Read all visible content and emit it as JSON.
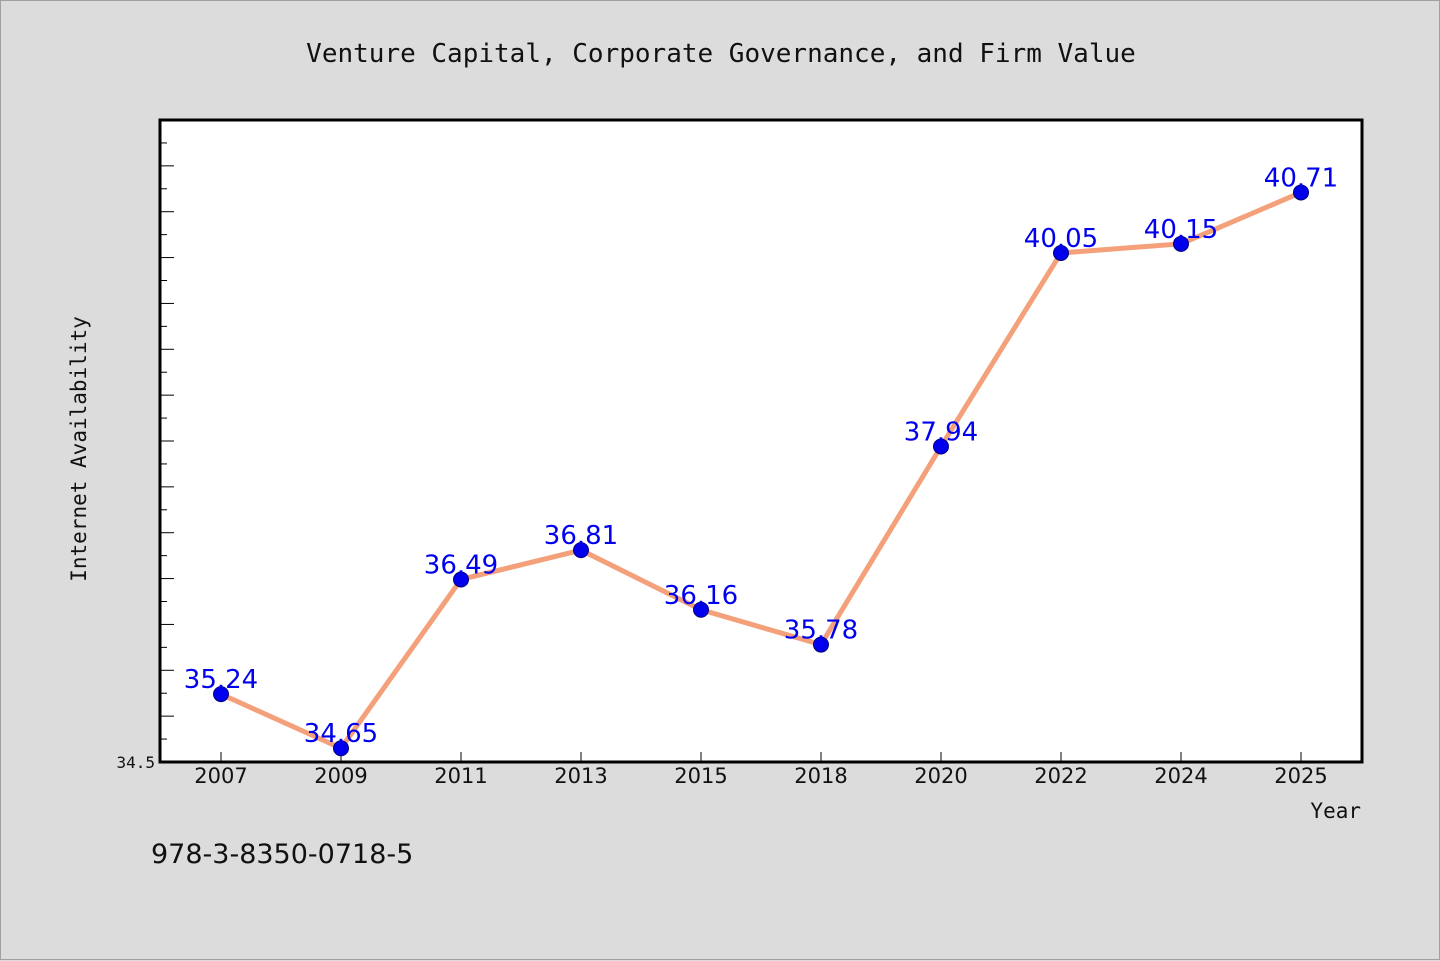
{
  "chart_data": {
    "type": "line",
    "title": "Venture Capital, Corporate Governance, and Firm Value",
    "xlabel": "Year",
    "ylabel": "Internet Availability",
    "categories": [
      "2007",
      "2009",
      "2011",
      "2013",
      "2015",
      "2018",
      "2020",
      "2022",
      "2024",
      "2025"
    ],
    "series": [
      {
        "values": [
          35.24,
          34.65,
          36.49,
          36.81,
          36.16,
          35.78,
          37.94,
          40.05,
          40.15,
          40.71
        ],
        "labels": [
          "35.24",
          "34.65",
          "36.49",
          "36.81",
          "36.16",
          "35.78",
          "37.94",
          "40.05",
          "40.15",
          "40.71"
        ],
        "line_color": "#f4a07a",
        "marker_color": "#0000ee"
      }
    ],
    "ylim": [
      34.5,
      41.5
    ],
    "y_tick_labels": [
      "34.5"
    ],
    "y_minor_tick_step": 0.5,
    "grid": false,
    "legend": "none"
  },
  "footer": {
    "isbn": "978-3-8350-0718-5"
  },
  "colors": {
    "background": "#dcdcdc",
    "plot_background": "#ffffff",
    "axis": "#000000",
    "label": "#0000ee"
  }
}
